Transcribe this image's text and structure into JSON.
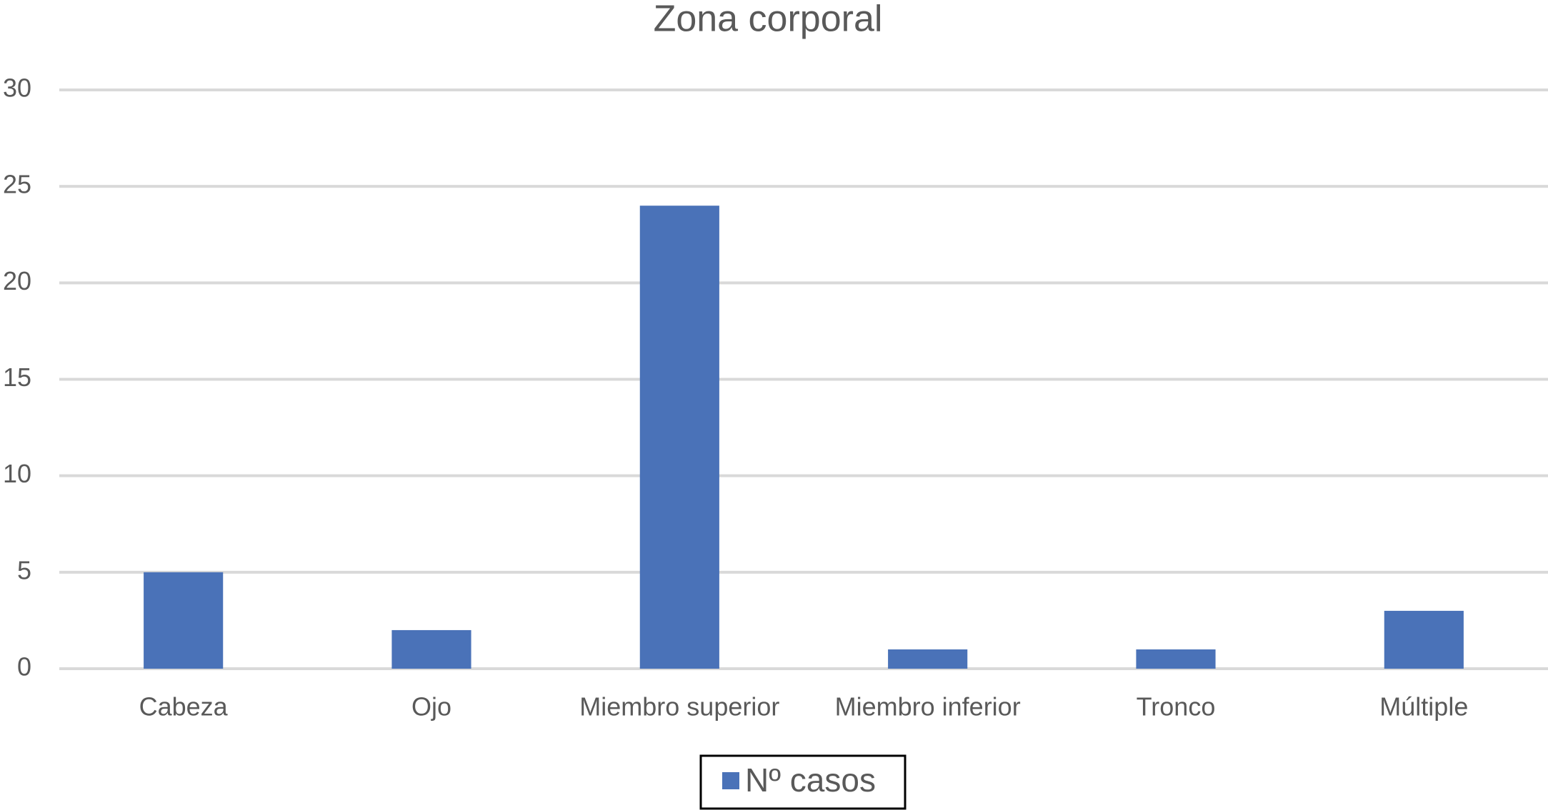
{
  "chart_data": {
    "type": "bar",
    "title": "Zona corporal",
    "categories": [
      "Cabeza",
      "Ojo",
      "Miembro superior",
      "Miembro inferior",
      "Tronco",
      "Múltiple"
    ],
    "series": [
      {
        "name": "Nº casos",
        "color": "#4a72b8",
        "values": [
          5,
          2,
          24,
          1,
          1,
          3
        ]
      }
    ],
    "ylim": [
      0,
      30
    ],
    "yticks": [
      0,
      5,
      10,
      15,
      20,
      25,
      30
    ],
    "grid": true,
    "legend": "bottom"
  }
}
